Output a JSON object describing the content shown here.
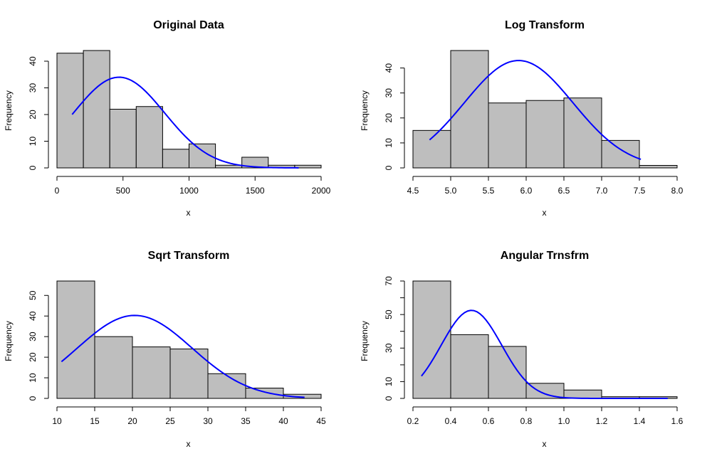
{
  "colors": {
    "bar_fill": "#bebebe",
    "bar_stroke": "#000000",
    "curve": "#0000ff"
  },
  "chart_data": [
    {
      "type": "bar",
      "title": "Original Data",
      "xlabel": "x",
      "ylabel": "Frequency",
      "xlim": [
        0,
        2000
      ],
      "ylim": [
        0,
        44
      ],
      "xticks": [
        0,
        500,
        1000,
        1500,
        2000
      ],
      "yticks": [
        0,
        10,
        20,
        30,
        40
      ],
      "bins": [
        {
          "x0": 0,
          "x1": 200,
          "value": 43
        },
        {
          "x0": 200,
          "x1": 400,
          "value": 44
        },
        {
          "x0": 400,
          "x1": 600,
          "value": 22
        },
        {
          "x0": 600,
          "x1": 800,
          "value": 23
        },
        {
          "x0": 800,
          "x1": 1000,
          "value": 7
        },
        {
          "x0": 1000,
          "x1": 1200,
          "value": 9
        },
        {
          "x0": 1200,
          "x1": 1400,
          "value": 1
        },
        {
          "x0": 1400,
          "x1": 1600,
          "value": 4
        },
        {
          "x0": 1600,
          "x1": 1800,
          "value": 1
        },
        {
          "x0": 1800,
          "x1": 2000,
          "value": 1
        }
      ],
      "curve": {
        "mean": 470,
        "sd": 345,
        "peak": 34,
        "x_range": [
          115,
          1830
        ]
      }
    },
    {
      "type": "bar",
      "title": "Log Transform",
      "xlabel": "x",
      "ylabel": "Frequency",
      "xlim": [
        4.5,
        8.0
      ],
      "ylim": [
        0,
        47
      ],
      "xticks": [
        "4.5",
        "5.0",
        "5.5",
        "6.0",
        "6.5",
        "7.0",
        "7.5",
        "8.0"
      ],
      "yticks": [
        0,
        10,
        20,
        30,
        40
      ],
      "bins": [
        {
          "x0": 4.5,
          "x1": 5.0,
          "value": 15
        },
        {
          "x0": 5.0,
          "x1": 5.5,
          "value": 47
        },
        {
          "x0": 5.5,
          "x1": 6.0,
          "value": 26
        },
        {
          "x0": 6.0,
          "x1": 6.5,
          "value": 27
        },
        {
          "x0": 6.5,
          "x1": 7.0,
          "value": 28
        },
        {
          "x0": 7.0,
          "x1": 7.5,
          "value": 11
        },
        {
          "x0": 7.5,
          "x1": 8.0,
          "value": 1
        }
      ],
      "curve": {
        "mean": 5.9,
        "sd": 0.72,
        "peak": 43,
        "x_range": [
          4.72,
          7.52
        ]
      }
    },
    {
      "type": "bar",
      "title": "Sqrt Transform",
      "xlabel": "x",
      "ylabel": "Frequency",
      "xlim": [
        10,
        45
      ],
      "ylim": [
        0,
        57
      ],
      "xticks": [
        10,
        15,
        20,
        25,
        30,
        35,
        40,
        45
      ],
      "yticks": [
        0,
        10,
        20,
        30,
        40,
        50
      ],
      "bins": [
        {
          "x0": 10,
          "x1": 15,
          "value": 57
        },
        {
          "x0": 15,
          "x1": 20,
          "value": 30
        },
        {
          "x0": 20,
          "x1": 25,
          "value": 25
        },
        {
          "x0": 25,
          "x1": 30,
          "value": 24
        },
        {
          "x0": 30,
          "x1": 35,
          "value": 12
        },
        {
          "x0": 35,
          "x1": 40,
          "value": 5
        },
        {
          "x0": 40,
          "x1": 45,
          "value": 2
        }
      ],
      "curve": {
        "mean": 20.3,
        "sd": 7.6,
        "peak": 40.3,
        "x_range": [
          10.6,
          42.8
        ]
      }
    },
    {
      "type": "bar",
      "title": "Angular Trnsfrm",
      "xlabel": "x",
      "ylabel": "Frequency",
      "xlim": [
        0.2,
        1.6
      ],
      "ylim": [
        0,
        70
      ],
      "xticks": [
        "0.2",
        "0.4",
        "0.6",
        "0.8",
        "1.0",
        "1.2",
        "1.4",
        "1.6"
      ],
      "yticks": [
        0,
        10,
        30,
        50,
        70
      ],
      "ytick_minor": [
        20,
        40,
        60
      ],
      "bins": [
        {
          "x0": 0.2,
          "x1": 0.4,
          "value": 70
        },
        {
          "x0": 0.4,
          "x1": 0.6,
          "value": 38
        },
        {
          "x0": 0.6,
          "x1": 0.8,
          "value": 31
        },
        {
          "x0": 0.8,
          "x1": 1.0,
          "value": 9
        },
        {
          "x0": 1.0,
          "x1": 1.2,
          "value": 5
        },
        {
          "x0": 1.2,
          "x1": 1.4,
          "value": 1
        },
        {
          "x0": 1.4,
          "x1": 1.6,
          "value": 1
        }
      ],
      "curve": {
        "mean": 0.51,
        "sd": 0.16,
        "peak": 52.5,
        "x_range": [
          0.245,
          1.55
        ]
      }
    }
  ]
}
